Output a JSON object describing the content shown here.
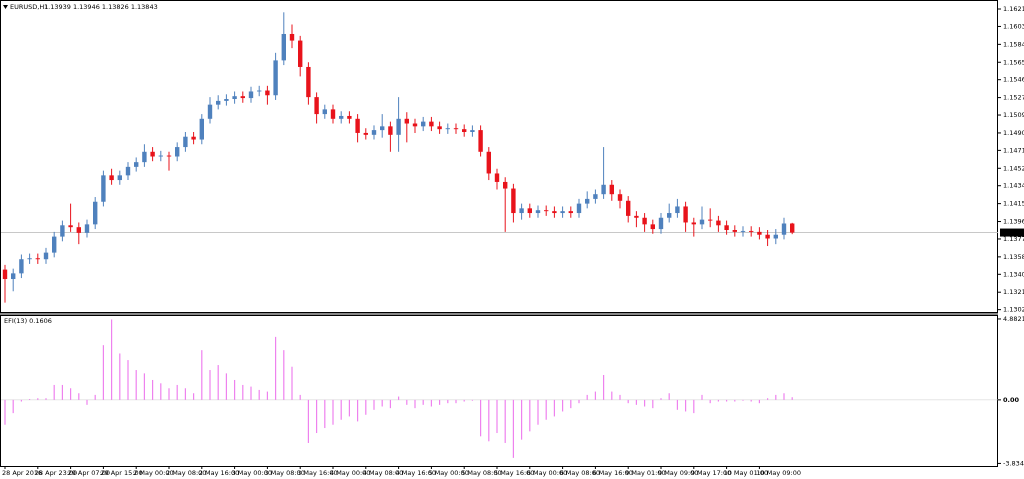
{
  "chart_data": [
    {
      "type": "candlestick",
      "title": "EURUSD,H1",
      "ohlc_text": "1.13939 1.13946 1.13826 1.13843",
      "categories": [
        "28 Apr 2016",
        null,
        null,
        null,
        "28 Apr 23:00",
        null,
        null,
        null,
        "29 Apr 07:00",
        null,
        null,
        null,
        "29 Apr 15:00",
        null,
        null,
        null,
        "2 May 00:00",
        null,
        null,
        null,
        "2 May 08:00",
        null,
        null,
        null,
        "2 May 16:00",
        null,
        null,
        null,
        "3 May 00:00",
        null,
        null,
        null,
        "3 May 08:00",
        null,
        null,
        null,
        "3 May 16:00",
        null,
        null,
        null,
        "4 May 00:00",
        null,
        null,
        null,
        "4 May 08:00",
        null,
        null,
        null,
        "4 May 16:00",
        null,
        null,
        null,
        "5 May 00:00",
        null,
        null,
        null,
        "5 May 08:00",
        null,
        null,
        null,
        "5 May 16:00",
        null,
        null,
        null,
        "6 May 00:00",
        null,
        null,
        null,
        "6 May 08:00",
        null,
        null,
        null,
        "6 May 16:00",
        null,
        null,
        null,
        "9 May 01:00",
        null,
        null,
        null,
        "9 May 09:00",
        null,
        null,
        null,
        "9 May 17:00",
        null,
        null,
        null,
        "10 May 01:00",
        null,
        null,
        null,
        "10 May 09:00",
        null,
        null,
        null,
        null
      ],
      "open": [
        1.1345,
        1.1335,
        1.1341,
        1.1356,
        1.1357,
        1.1356,
        1.1363,
        1.138,
        1.1392,
        1.139,
        1.1384,
        1.1393,
        1.1417,
        1.1445,
        1.144,
        1.1445,
        1.1454,
        1.1459,
        1.147,
        1.1465,
        1.1466,
        1.1465,
        1.1475,
        1.1486,
        1.1483,
        1.1505,
        1.152,
        1.1524,
        1.1526,
        1.1529,
        1.1527,
        1.1534,
        1.1535,
        1.153,
        1.1567,
        1.1595,
        1.1588,
        1.156,
        1.1528,
        1.151,
        1.1515,
        1.1505,
        1.1508,
        1.1505,
        1.149,
        1.1488,
        1.1493,
        1.1497,
        1.1488,
        1.1505,
        1.15,
        1.1497,
        1.1502,
        1.1497,
        1.1494,
        1.1495,
        1.1494,
        1.1491,
        1.1493,
        1.147,
        1.1447,
        1.1438,
        1.1431,
        1.1405,
        1.141,
        1.1405,
        1.1408,
        1.1407,
        1.1405,
        1.1407,
        1.1405,
        1.1415,
        1.142,
        1.1425,
        1.1435,
        1.1425,
        1.1418,
        1.1402,
        1.14,
        1.1393,
        1.1388,
        1.14,
        1.1405,
        1.1412,
        1.1395,
        1.1393,
        1.1398,
        1.1397,
        1.1392,
        1.1387,
        1.1385,
        1.1386,
        1.1385,
        1.1382,
        1.1378,
        1.1382,
        1.13939
      ],
      "high": [
        1.135,
        1.1346,
        1.1361,
        1.1362,
        1.1362,
        1.1368,
        1.1385,
        1.1397,
        1.1415,
        1.1395,
        1.1398,
        1.1422,
        1.145,
        1.1452,
        1.145,
        1.1459,
        1.1464,
        1.1478,
        1.1475,
        1.1471,
        1.147,
        1.148,
        1.1491,
        1.1491,
        1.151,
        1.1528,
        1.153,
        1.1531,
        1.1534,
        1.1534,
        1.1539,
        1.154,
        1.154,
        1.1575,
        1.1618,
        1.1605,
        1.1593,
        1.1565,
        1.1533,
        1.152,
        1.152,
        1.1513,
        1.1513,
        1.151,
        1.1495,
        1.1498,
        1.151,
        1.1502,
        1.1528,
        1.1512,
        1.1505,
        1.1507,
        1.1507,
        1.1502,
        1.15,
        1.15,
        1.1499,
        1.1498,
        1.1498,
        1.1475,
        1.1452,
        1.1443,
        1.1436,
        1.1415,
        1.1415,
        1.1413,
        1.1413,
        1.1412,
        1.1412,
        1.1412,
        1.142,
        1.1428,
        1.143,
        1.1475,
        1.144,
        1.143,
        1.1423,
        1.1407,
        1.1405,
        1.1398,
        1.1405,
        1.1415,
        1.142,
        1.1417,
        1.14,
        1.1412,
        1.141,
        1.1402,
        1.1397,
        1.1392,
        1.1391,
        1.1391,
        1.139,
        1.1387,
        1.1388,
        1.14,
        1.13946
      ],
      "low": [
        1.131,
        1.1322,
        1.1336,
        1.1351,
        1.1351,
        1.1351,
        1.1358,
        1.1375,
        1.1385,
        1.1372,
        1.1379,
        1.1388,
        1.1412,
        1.1435,
        1.1435,
        1.144,
        1.1449,
        1.1454,
        1.146,
        1.146,
        1.145,
        1.146,
        1.147,
        1.1478,
        1.1478,
        1.15,
        1.1515,
        1.1519,
        1.1521,
        1.1522,
        1.1522,
        1.1529,
        1.152,
        1.1525,
        1.1562,
        1.158,
        1.155,
        1.152,
        1.15,
        1.1505,
        1.15,
        1.15,
        1.15,
        1.148,
        1.1483,
        1.1483,
        1.1485,
        1.147,
        1.147,
        1.148,
        1.149,
        1.1492,
        1.1492,
        1.1489,
        1.1489,
        1.1489,
        1.1486,
        1.1486,
        1.1465,
        1.144,
        1.143,
        1.1385,
        1.1395,
        1.1398,
        1.14,
        1.14,
        1.1402,
        1.14,
        1.14,
        1.14,
        1.14,
        1.141,
        1.1415,
        1.142,
        1.1418,
        1.141,
        1.1395,
        1.139,
        1.1385,
        1.1383,
        1.1383,
        1.1395,
        1.14,
        1.1385,
        1.138,
        1.1388,
        1.139,
        1.1385,
        1.1382,
        1.138,
        1.138,
        1.138,
        1.1377,
        1.137,
        1.1372,
        1.1377,
        1.13826
      ],
      "close": [
        1.1335,
        1.1341,
        1.1356,
        1.1357,
        1.1356,
        1.1363,
        1.138,
        1.1392,
        1.139,
        1.1384,
        1.1393,
        1.1417,
        1.1445,
        1.144,
        1.1445,
        1.1454,
        1.1459,
        1.147,
        1.1465,
        1.1466,
        1.1465,
        1.1475,
        1.1486,
        1.1483,
        1.1505,
        1.152,
        1.1524,
        1.1526,
        1.1529,
        1.1527,
        1.1534,
        1.1535,
        1.153,
        1.1567,
        1.1595,
        1.1588,
        1.156,
        1.1528,
        1.151,
        1.1515,
        1.1505,
        1.1508,
        1.1505,
        1.149,
        1.1488,
        1.1493,
        1.1497,
        1.1488,
        1.1505,
        1.15,
        1.1497,
        1.1502,
        1.1497,
        1.1494,
        1.1495,
        1.1494,
        1.1491,
        1.1493,
        1.147,
        1.1447,
        1.1438,
        1.1431,
        1.1405,
        1.141,
        1.1405,
        1.1408,
        1.1407,
        1.1405,
        1.1407,
        1.1405,
        1.1415,
        1.142,
        1.1425,
        1.1435,
        1.1425,
        1.1418,
        1.1402,
        1.14,
        1.1393,
        1.1388,
        1.14,
        1.1405,
        1.1412,
        1.1395,
        1.1393,
        1.1398,
        1.1397,
        1.1392,
        1.1387,
        1.1385,
        1.1386,
        1.1385,
        1.1382,
        1.1378,
        1.1382,
        1.13939,
        1.13843
      ],
      "up_color": "#4f81bd",
      "down_color": "#e8131b",
      "current_price": 1.13843,
      "ylim": [
        1.13,
        1.163
      ],
      "yticks": [
        1.16215,
        {
          "value": 1.1603,
          "label": "1.16030"
        },
        {
          "value": 1.1584,
          "label": "1.15840"
        },
        {
          "value": 1.1565,
          "label": "1.15650"
        },
        1.15465,
        1.15275,
        {
          "value": 1.1509,
          "label": "1.15090"
        },
        {
          "value": 1.149,
          "label": "1.14900"
        },
        1.14715,
        1.14525,
        {
          "value": 1.1434,
          "label": "1.14340"
        },
        {
          "value": 1.1415,
          "label": "1.14150"
        },
        {
          "value": 1.1396,
          "label": "1.13960"
        },
        1.13775,
        1.13585,
        {
          "value": 1.134,
          "label": "1.13400"
        },
        {
          "value": 1.1321,
          "label": "1.13210"
        },
        1.13025
      ]
    },
    {
      "type": "bar",
      "title": "EFI(13) 0.1606",
      "color": "#ee82ee",
      "values": [
        -1.5,
        -0.8,
        -0.1,
        0.05,
        0.1,
        0.1,
        0.9,
        0.9,
        0.7,
        0.4,
        -0.3,
        0.3,
        3.3,
        4.85,
        2.8,
        2.4,
        1.8,
        1.6,
        1.2,
        1.0,
        0.7,
        0.9,
        0.7,
        0.4,
        3.0,
        1.8,
        2.1,
        1.6,
        1.2,
        0.9,
        0.8,
        0.6,
        0.5,
        3.8,
        3.0,
        2.0,
        0.3,
        -2.6,
        -2.0,
        -1.7,
        -1.5,
        -1.2,
        -1.0,
        -1.3,
        -0.9,
        -0.6,
        -0.4,
        -0.5,
        0.2,
        -0.3,
        -0.5,
        -0.3,
        -0.4,
        -0.3,
        -0.2,
        -0.2,
        -0.1,
        -0.05,
        -2.2,
        -2.5,
        -2.0,
        -2.6,
        -3.5,
        -2.4,
        -1.9,
        -1.5,
        -1.2,
        -1.0,
        -0.7,
        -0.5,
        -0.2,
        0.3,
        0.5,
        1.5,
        0.5,
        0.3,
        -0.2,
        -0.3,
        -0.4,
        -0.5,
        0.1,
        0.4,
        -0.6,
        -0.7,
        -0.8,
        0.3,
        -0.2,
        -0.1,
        -0.1,
        -0.1,
        -0.05,
        -0.1,
        -0.2,
        0.1,
        0.3,
        0.4,
        0.16
      ],
      "ylim": [
        -3.99,
        5.06
      ],
      "yticks": [
        4.8821,
        {
          "value": 0,
          "label": "0.00"
        },
        -3.8342
      ]
    }
  ]
}
